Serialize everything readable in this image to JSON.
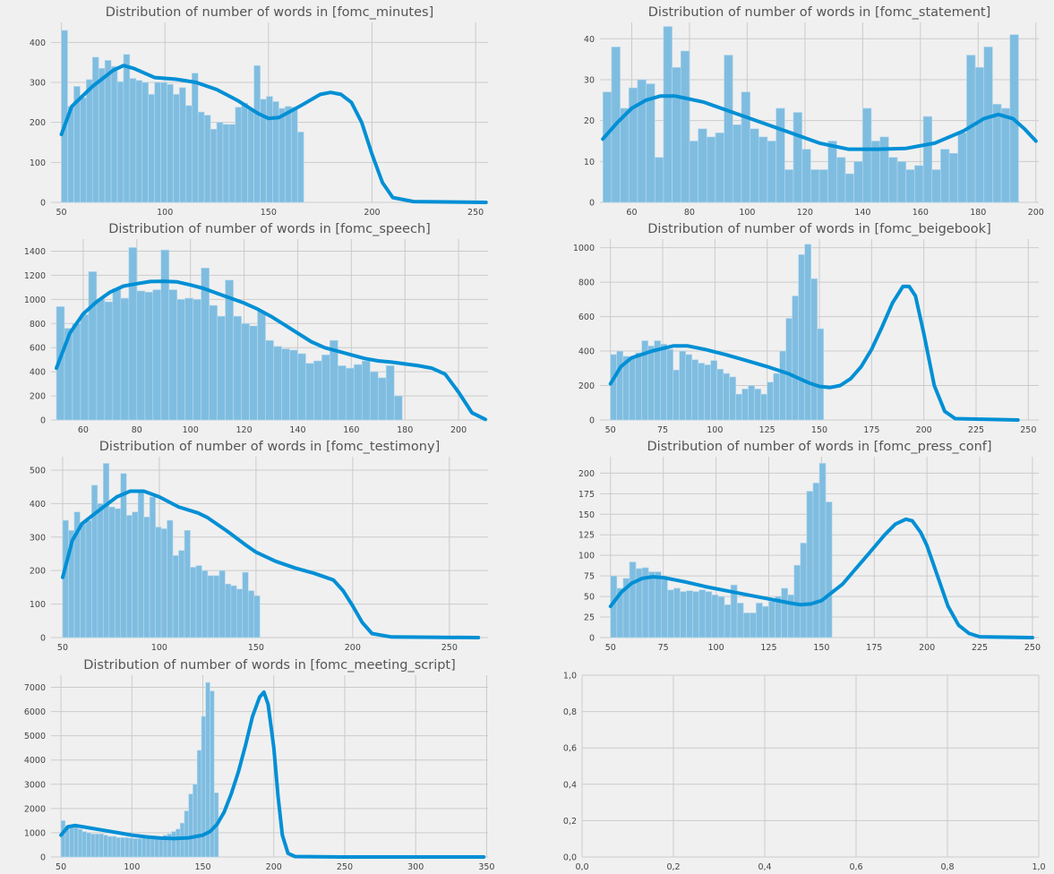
{
  "chart_data": [
    {
      "type": "bar",
      "title": "Distribution of number of words in [fomc_minutes]",
      "xlabel": "",
      "ylabel": "",
      "xlim": [
        45,
        256
      ],
      "ylim": [
        0,
        450
      ],
      "x_ticks": [
        50,
        100,
        150,
        200,
        250
      ],
      "y_ticks": [
        0,
        100,
        200,
        300,
        400
      ],
      "bin_start": 50,
      "bin_width": 3,
      "values": [
        430,
        240,
        290,
        262,
        307,
        363,
        335,
        355,
        340,
        302,
        370,
        310,
        305,
        300,
        270,
        300,
        300,
        295,
        270,
        287,
        242,
        323,
        226,
        218,
        183,
        200,
        195,
        195,
        238,
        248,
        233,
        342,
        258,
        265,
        252,
        235,
        240,
        238,
        176
      ],
      "kde": [
        [
          50,
          170
        ],
        [
          55,
          240
        ],
        [
          65,
          290
        ],
        [
          75,
          330
        ],
        [
          80,
          342
        ],
        [
          85,
          335
        ],
        [
          95,
          312
        ],
        [
          105,
          308
        ],
        [
          115,
          300
        ],
        [
          125,
          282
        ],
        [
          135,
          255
        ],
        [
          145,
          222
        ],
        [
          150,
          210
        ],
        [
          155,
          212
        ],
        [
          165,
          240
        ],
        [
          175,
          270
        ],
        [
          180,
          275
        ],
        [
          185,
          270
        ],
        [
          190,
          250
        ],
        [
          195,
          200
        ],
        [
          200,
          120
        ],
        [
          205,
          50
        ],
        [
          210,
          12
        ],
        [
          220,
          2
        ],
        [
          255,
          0
        ]
      ],
      "grid": true
    },
    {
      "type": "bar",
      "title": "Distribution of number of words in [fomc_statement]",
      "xlabel": "",
      "ylabel": "",
      "xlim": [
        49,
        201
      ],
      "ylim": [
        0,
        44
      ],
      "x_ticks": [
        60,
        80,
        100,
        120,
        140,
        160,
        180,
        200
      ],
      "y_ticks": [
        0,
        10,
        20,
        30,
        40
      ],
      "bin_start": 50,
      "bin_width": 3,
      "values": [
        27,
        38,
        23,
        28,
        30,
        29,
        11,
        43,
        33,
        37,
        15,
        18,
        16,
        17,
        36,
        19,
        27,
        18,
        16,
        15,
        23,
        8,
        22,
        13,
        8,
        8,
        15,
        11,
        7,
        10,
        23,
        15,
        16,
        11,
        10,
        8,
        9,
        21,
        8,
        13,
        12,
        17,
        36,
        33,
        38,
        24,
        23,
        41
      ],
      "kde": [
        [
          50,
          15.5
        ],
        [
          55,
          19.5
        ],
        [
          60,
          23
        ],
        [
          65,
          25
        ],
        [
          70,
          26
        ],
        [
          75,
          26
        ],
        [
          85,
          24.5
        ],
        [
          95,
          22
        ],
        [
          105,
          19.5
        ],
        [
          115,
          17
        ],
        [
          125,
          14.5
        ],
        [
          135,
          13
        ],
        [
          145,
          13
        ],
        [
          155,
          13.2
        ],
        [
          165,
          14.5
        ],
        [
          175,
          17.5
        ],
        [
          182,
          20.5
        ],
        [
          187,
          21.5
        ],
        [
          192,
          20.5
        ],
        [
          196,
          18
        ],
        [
          200,
          15
        ]
      ],
      "grid": true
    },
    {
      "type": "bar",
      "title": "Distribution of number of words in [fomc_speech]",
      "xlabel": "",
      "ylabel": "",
      "xlim": [
        48,
        211
      ],
      "ylim": [
        0,
        1500
      ],
      "x_ticks": [
        60,
        80,
        100,
        120,
        140,
        160,
        180,
        200
      ],
      "y_ticks": [
        0,
        200,
        400,
        600,
        800,
        1000,
        1200,
        1400
      ],
      "bin_start": 50,
      "bin_width": 3,
      "values": [
        940,
        760,
        800,
        875,
        1230,
        1000,
        980,
        1090,
        1010,
        1430,
        1070,
        1060,
        1080,
        1410,
        1080,
        1000,
        1010,
        1000,
        1260,
        950,
        860,
        1160,
        860,
        800,
        780,
        900,
        660,
        610,
        590,
        580,
        550,
        470,
        490,
        540,
        660,
        450,
        430,
        460,
        490,
        400,
        350,
        450,
        200
      ],
      "kde": [
        [
          50,
          430
        ],
        [
          55,
          720
        ],
        [
          60,
          880
        ],
        [
          65,
          980
        ],
        [
          70,
          1060
        ],
        [
          75,
          1110
        ],
        [
          80,
          1130
        ],
        [
          85,
          1148
        ],
        [
          90,
          1150
        ],
        [
          95,
          1145
        ],
        [
          100,
          1120
        ],
        [
          105,
          1090
        ],
        [
          110,
          1050
        ],
        [
          115,
          1010
        ],
        [
          120,
          970
        ],
        [
          125,
          920
        ],
        [
          130,
          860
        ],
        [
          135,
          790
        ],
        [
          140,
          720
        ],
        [
          145,
          650
        ],
        [
          150,
          600
        ],
        [
          155,
          570
        ],
        [
          160,
          540
        ],
        [
          165,
          510
        ],
        [
          170,
          490
        ],
        [
          175,
          480
        ],
        [
          180,
          465
        ],
        [
          185,
          450
        ],
        [
          190,
          430
        ],
        [
          195,
          380
        ],
        [
          200,
          230
        ],
        [
          205,
          60
        ],
        [
          210,
          5
        ]
      ],
      "grid": true
    },
    {
      "type": "bar",
      "title": "Distribution of number of words in [fomc_beigebook]",
      "xlabel": "",
      "ylabel": "",
      "xlim": [
        45,
        255
      ],
      "ylim": [
        0,
        1050
      ],
      "x_ticks": [
        50,
        75,
        100,
        125,
        150,
        175,
        200,
        225,
        250
      ],
      "y_ticks": [
        0,
        200,
        400,
        600,
        800,
        1000
      ],
      "bin_start": 50,
      "bin_width": 3,
      "values": [
        380,
        400,
        370,
        360,
        390,
        460,
        430,
        460,
        440,
        410,
        290,
        400,
        380,
        350,
        330,
        320,
        345,
        295,
        270,
        250,
        150,
        180,
        200,
        180,
        150,
        220,
        270,
        400,
        590,
        720,
        960,
        1020,
        820,
        530
      ],
      "kde": [
        [
          50,
          210
        ],
        [
          55,
          310
        ],
        [
          60,
          360
        ],
        [
          70,
          400
        ],
        [
          80,
          430
        ],
        [
          87,
          430
        ],
        [
          95,
          410
        ],
        [
          105,
          380
        ],
        [
          115,
          345
        ],
        [
          125,
          310
        ],
        [
          135,
          270
        ],
        [
          145,
          215
        ],
        [
          150,
          195
        ],
        [
          155,
          188
        ],
        [
          160,
          200
        ],
        [
          165,
          240
        ],
        [
          170,
          310
        ],
        [
          175,
          410
        ],
        [
          180,
          540
        ],
        [
          185,
          680
        ],
        [
          190,
          775
        ],
        [
          193,
          775
        ],
        [
          196,
          720
        ],
        [
          200,
          500
        ],
        [
          205,
          200
        ],
        [
          210,
          50
        ],
        [
          215,
          8
        ],
        [
          245,
          0
        ]
      ],
      "grid": true
    },
    {
      "type": "bar",
      "title": "Distribution of number of words in [fomc_testimony]",
      "xlabel": "",
      "ylabel": "",
      "xlim": [
        44,
        270
      ],
      "ylim": [
        0,
        540
      ],
      "x_ticks": [
        50,
        100,
        150,
        200,
        250
      ],
      "y_ticks": [
        0,
        100,
        200,
        300,
        400,
        500
      ],
      "bin_start": 50,
      "bin_width": 3,
      "values": [
        350,
        320,
        375,
        340,
        350,
        455,
        400,
        520,
        390,
        385,
        490,
        365,
        375,
        435,
        360,
        420,
        330,
        325,
        350,
        245,
        260,
        320,
        210,
        215,
        200,
        185,
        185,
        200,
        160,
        155,
        145,
        195,
        140,
        125
      ],
      "kde": [
        [
          50,
          180
        ],
        [
          55,
          290
        ],
        [
          60,
          340
        ],
        [
          70,
          385
        ],
        [
          78,
          420
        ],
        [
          85,
          437
        ],
        [
          92,
          437
        ],
        [
          100,
          420
        ],
        [
          110,
          390
        ],
        [
          120,
          372
        ],
        [
          125,
          358
        ],
        [
          135,
          318
        ],
        [
          145,
          275
        ],
        [
          150,
          255
        ],
        [
          160,
          228
        ],
        [
          170,
          208
        ],
        [
          180,
          192
        ],
        [
          190,
          172
        ],
        [
          195,
          140
        ],
        [
          200,
          95
        ],
        [
          205,
          45
        ],
        [
          210,
          12
        ],
        [
          220,
          2
        ],
        [
          265,
          0
        ]
      ],
      "grid": true
    },
    {
      "type": "bar",
      "title": "Distribution of number of words in [fomc_press_conf]",
      "xlabel": "",
      "ylabel": "",
      "xlim": [
        45,
        253
      ],
      "ylim": [
        0,
        220
      ],
      "x_ticks": [
        50,
        75,
        100,
        125,
        150,
        175,
        200,
        225,
        250
      ],
      "y_ticks": [
        0,
        25,
        50,
        75,
        100,
        125,
        150,
        175,
        200
      ],
      "bin_start": 50,
      "bin_width": 3,
      "values": [
        75,
        60,
        72,
        92,
        84,
        85,
        80,
        80,
        72,
        58,
        60,
        56,
        57,
        56,
        58,
        56,
        52,
        50,
        40,
        64,
        42,
        30,
        30,
        42,
        38,
        44,
        50,
        60,
        52,
        88,
        115,
        178,
        188,
        212,
        165
      ],
      "kde": [
        [
          50,
          38
        ],
        [
          55,
          55
        ],
        [
          60,
          66
        ],
        [
          65,
          72
        ],
        [
          70,
          74
        ],
        [
          75,
          73
        ],
        [
          85,
          68
        ],
        [
          95,
          62
        ],
        [
          105,
          57
        ],
        [
          115,
          52
        ],
        [
          125,
          47
        ],
        [
          135,
          42
        ],
        [
          140,
          40
        ],
        [
          145,
          41
        ],
        [
          150,
          45
        ],
        [
          155,
          55
        ],
        [
          160,
          65
        ],
        [
          165,
          80
        ],
        [
          170,
          95
        ],
        [
          175,
          110
        ],
        [
          180,
          125
        ],
        [
          185,
          138
        ],
        [
          190,
          144
        ],
        [
          193,
          142
        ],
        [
          197,
          128
        ],
        [
          200,
          112
        ],
        [
          205,
          75
        ],
        [
          210,
          38
        ],
        [
          215,
          15
        ],
        [
          220,
          5
        ],
        [
          225,
          1
        ],
        [
          250,
          0
        ]
      ],
      "grid": true
    },
    {
      "type": "bar",
      "title": "Distribution of number of words in [fomc_meeting_script]",
      "xlabel": "",
      "ylabel": "",
      "xlim": [
        43,
        351
      ],
      "ylim": [
        0,
        7500
      ],
      "x_ticks": [
        50,
        100,
        150,
        200,
        250,
        300,
        350
      ],
      "y_ticks": [
        0,
        1000,
        2000,
        3000,
        4000,
        5000,
        6000,
        7000
      ],
      "bin_start": 50,
      "bin_width": 3,
      "values": [
        1500,
        1300,
        1250,
        1250,
        1150,
        1050,
        1000,
        950,
        950,
        950,
        900,
        850,
        850,
        800,
        800,
        800,
        780,
        760,
        760,
        780,
        780,
        770,
        800,
        850,
        900,
        950,
        1050,
        1150,
        1400,
        1900,
        2600,
        3000,
        4400,
        5800,
        7200,
        6850,
        2650
      ],
      "kde": [
        [
          50,
          900
        ],
        [
          55,
          1250
        ],
        [
          60,
          1300
        ],
        [
          70,
          1200
        ],
        [
          80,
          1100
        ],
        [
          90,
          1000
        ],
        [
          100,
          900
        ],
        [
          110,
          830
        ],
        [
          120,
          780
        ],
        [
          130,
          760
        ],
        [
          140,
          790
        ],
        [
          150,
          900
        ],
        [
          155,
          1050
        ],
        [
          160,
          1350
        ],
        [
          165,
          1850
        ],
        [
          170,
          2600
        ],
        [
          175,
          3500
        ],
        [
          180,
          4600
        ],
        [
          185,
          5800
        ],
        [
          190,
          6600
        ],
        [
          193,
          6800
        ],
        [
          196,
          6300
        ],
        [
          200,
          4500
        ],
        [
          203,
          2500
        ],
        [
          206,
          900
        ],
        [
          210,
          150
        ],
        [
          215,
          20
        ],
        [
          250,
          0
        ],
        [
          348,
          0
        ]
      ],
      "grid": true
    },
    {
      "type": "empty",
      "xlim": [
        0,
        1
      ],
      "ylim": [
        0,
        1
      ],
      "x_ticks": [
        "0,0",
        "0,2",
        "0,4",
        "0,6",
        "0,8",
        "1,0"
      ],
      "y_ticks": [
        "0,0",
        "0,2",
        "0,4",
        "0,6",
        "0,8",
        "1,0"
      ],
      "grid": true
    }
  ],
  "colors": {
    "background": "#f0f0f0",
    "grid": "#cbcbcb",
    "bar_fill": "#7fbde0",
    "bar_edge": "#b6d9ee",
    "kde_line": "#008fd5",
    "title": "#555555",
    "tick": "#444444"
  }
}
